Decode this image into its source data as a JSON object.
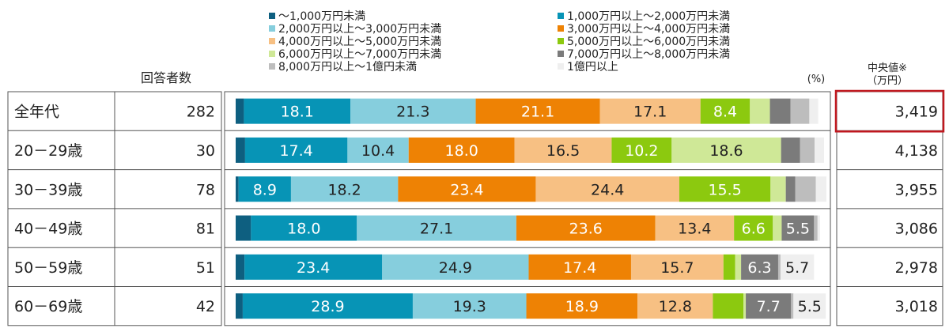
{
  "chart_data": {
    "type": "bar",
    "orientation": "horizontal",
    "stacked": true,
    "percent": true,
    "unit_label": "(%)",
    "columns": {
      "respondents_header": "回答者数",
      "median_header_line1": "中央値※",
      "median_header_line2": "（万円）"
    },
    "categories": [
      "全年代",
      "20－29歳",
      "30－39歳",
      "40－49歳",
      "50－59歳",
      "60－69歳"
    ],
    "respondents": [
      "282",
      "30",
      "78",
      "81",
      "51",
      "42"
    ],
    "medians": [
      "3,419",
      "4,138",
      "3,955",
      "3,086",
      "2,978",
      "3,018"
    ],
    "highlight_row": 0,
    "highlight_color": "#c0181f",
    "series": [
      {
        "name": "～1,000万円未満",
        "color": "#0e5f80",
        "values": [
          1.4,
          1.6,
          0.5,
          2.6,
          1.5,
          1.2
        ],
        "labels": [
          "",
          "",
          "",
          "",
          "",
          ""
        ]
      },
      {
        "name": "1,000万円以上～2,000万円未満",
        "color": "#0794b6",
        "values": [
          18.1,
          17.4,
          8.9,
          18.0,
          23.4,
          28.9
        ],
        "labels": [
          "18.1",
          "17.4",
          "8.9",
          "18.0",
          "23.4",
          "28.9"
        ]
      },
      {
        "name": "2,000万円以上～3,000万円未満",
        "color": "#86cedd",
        "values": [
          21.3,
          10.4,
          18.2,
          27.1,
          24.9,
          19.3
        ],
        "labels": [
          "21.3",
          "10.4",
          "18.2",
          "27.1",
          "24.9",
          "19.3"
        ]
      },
      {
        "name": "3,000万円以上～4,000万円未満",
        "color": "#ee8204",
        "values": [
          21.1,
          18.0,
          23.4,
          23.6,
          17.4,
          18.9
        ],
        "labels": [
          "21.1",
          "18.0",
          "23.4",
          "23.6",
          "17.4",
          "18.9"
        ]
      },
      {
        "name": "4,000万円以上～5,000万円未満",
        "color": "#f7c083",
        "values": [
          17.1,
          16.5,
          24.4,
          13.4,
          15.7,
          12.8
        ],
        "labels": [
          "17.1",
          "16.5",
          "24.4",
          "13.4",
          "15.7",
          "12.8"
        ]
      },
      {
        "name": "5,000万円以上～6,000万円未満",
        "color": "#8cc90f",
        "values": [
          8.4,
          10.2,
          15.5,
          6.6,
          2.0,
          5.2
        ],
        "labels": [
          "8.4",
          "10.2",
          "15.5",
          "6.6",
          "",
          ""
        ]
      },
      {
        "name": "6,000万円以上～7,000万円未満",
        "color": "#cfe897",
        "values": [
          3.4,
          18.6,
          2.6,
          1.5,
          1.0,
          0.4
        ],
        "labels": [
          "",
          "18.6",
          "",
          "",
          "",
          ""
        ]
      },
      {
        "name": "7,000万円以上～8,000万円未満",
        "color": "#7b7b7b",
        "values": [
          3.5,
          3.2,
          1.6,
          5.5,
          6.3,
          7.7
        ],
        "labels": [
          "",
          "",
          "",
          "5.5",
          "6.3",
          "7.7"
        ]
      },
      {
        "name": "8,000万円以上～1億円未満",
        "color": "#bdbdbd",
        "values": [
          3.2,
          2.5,
          3.5,
          0.6,
          0.4,
          0.4
        ],
        "labels": [
          "",
          "",
          "",
          "",
          "",
          ""
        ]
      },
      {
        "name": "1億円以上",
        "color": "#efefef",
        "values": [
          1.5,
          1.6,
          1.8,
          0.4,
          5.7,
          5.5
        ],
        "labels": [
          "",
          "",
          "",
          "",
          "5.7",
          "5.5"
        ]
      }
    ],
    "xlim": [
      0,
      100
    ]
  }
}
